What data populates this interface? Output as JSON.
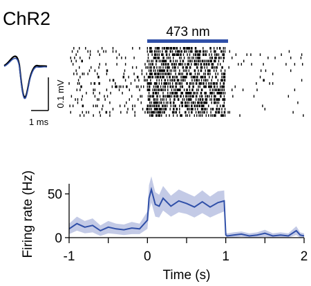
{
  "figure": {
    "panel_title": "ChR2",
    "stimulus_label": "473 nm",
    "stimulus_color": "#2f4fa8",
    "waveform_scale": {
      "y_label": "0.1 mV",
      "x_label": "1 ms"
    }
  },
  "chart_data": [
    {
      "type": "raster",
      "stimulus": {
        "label": "473 nm",
        "start_s": 0,
        "end_s": 1
      },
      "x_range_s": [
        -1,
        2
      ],
      "trials": 22,
      "baseline_rate_hz": 8,
      "stim_rate_hz": 45,
      "post_rate_hz": 2
    },
    {
      "type": "line",
      "xlabel": "Time (s)",
      "ylabel": "Firing rate (Hz)",
      "xlim": [
        -1,
        2
      ],
      "ylim": [
        0,
        60
      ],
      "xticks": [
        -1,
        0,
        1,
        2
      ],
      "yticks": [
        0,
        50
      ],
      "series_color": "#2f4fa8",
      "band_color": "#aab4dc",
      "x": [
        -1.0,
        -0.9,
        -0.8,
        -0.7,
        -0.6,
        -0.5,
        -0.4,
        -0.3,
        -0.2,
        -0.1,
        0.0,
        0.02,
        0.05,
        0.1,
        0.15,
        0.2,
        0.3,
        0.4,
        0.5,
        0.6,
        0.7,
        0.8,
        0.9,
        0.98,
        1.0,
        1.02,
        1.1,
        1.2,
        1.3,
        1.4,
        1.5,
        1.6,
        1.7,
        1.8,
        1.9,
        1.95,
        2.0
      ],
      "y": [
        10,
        16,
        12,
        14,
        8,
        12,
        10,
        9,
        11,
        10,
        20,
        45,
        55,
        38,
        36,
        45,
        36,
        42,
        39,
        35,
        41,
        35,
        40,
        42,
        3,
        2,
        3,
        4,
        2,
        3,
        5,
        2,
        3,
        2,
        8,
        3,
        2
      ],
      "band_halfwidth": [
        6,
        8,
        7,
        8,
        6,
        7,
        6,
        6,
        7,
        6,
        10,
        15,
        15,
        14,
        13,
        14,
        12,
        13,
        12,
        12,
        13,
        12,
        13,
        12,
        3,
        3,
        3,
        3,
        3,
        3,
        4,
        3,
        3,
        3,
        5,
        3,
        3
      ]
    }
  ]
}
